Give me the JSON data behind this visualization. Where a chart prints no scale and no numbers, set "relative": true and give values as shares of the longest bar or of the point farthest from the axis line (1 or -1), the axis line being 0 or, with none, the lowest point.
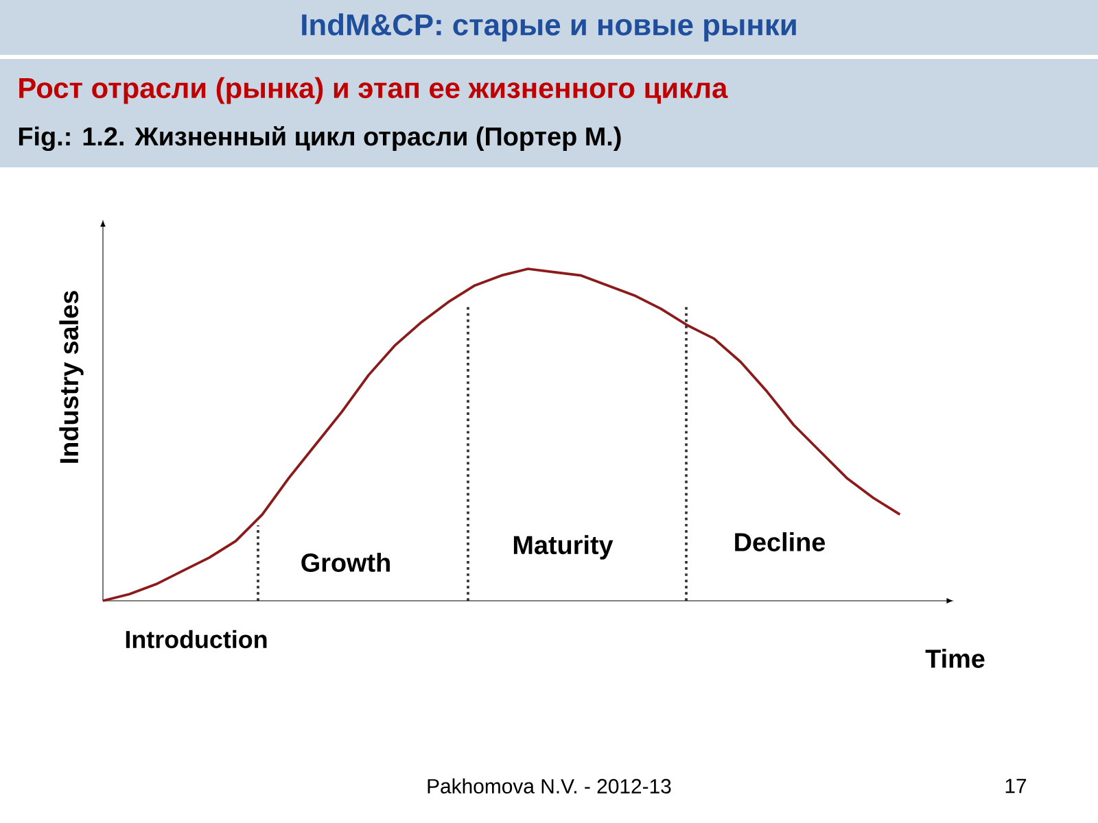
{
  "chart_data": {
    "type": "line",
    "relative": true,
    "title": "IndM&CP:  старые и новые рынки",
    "subtitle": "Рост отрасли (рынка) и этап ее жизненного цикла",
    "xlabel": "Time",
    "ylabel": "Industry sales",
    "categories": [
      null,
      null,
      null,
      null,
      null,
      null,
      null,
      null,
      null,
      null,
      null,
      null,
      null,
      null,
      null,
      null,
      null,
      null,
      null,
      null,
      null,
      null,
      null,
      null,
      null,
      null,
      null,
      null,
      null,
      null,
      null
    ],
    "series": [
      {
        "color": "#8b1a1a",
        "values": [
          0,
          0.02,
          0.05,
          0.09,
          0.13,
          0.18,
          0.26,
          0.37,
          0.47,
          0.57,
          0.68,
          0.77,
          0.84,
          0.9,
          0.95,
          0.98,
          1,
          0.99,
          0.98,
          0.95,
          0.92,
          0.88,
          0.83,
          0.79,
          0.72,
          0.63,
          0.53,
          0.45,
          0.37,
          0.31,
          0.26
        ]
      }
    ],
    "annotations": [
      "Fig.: 1.2. Жизненный цикл отрасли (Портер М.)",
      "Introduction",
      "Pakhomova N.V. - 2012-13",
      "17",
      "Growth",
      "Maturity",
      "Decline"
    ],
    "marker": "none",
    "line_style": "solid"
  }
}
